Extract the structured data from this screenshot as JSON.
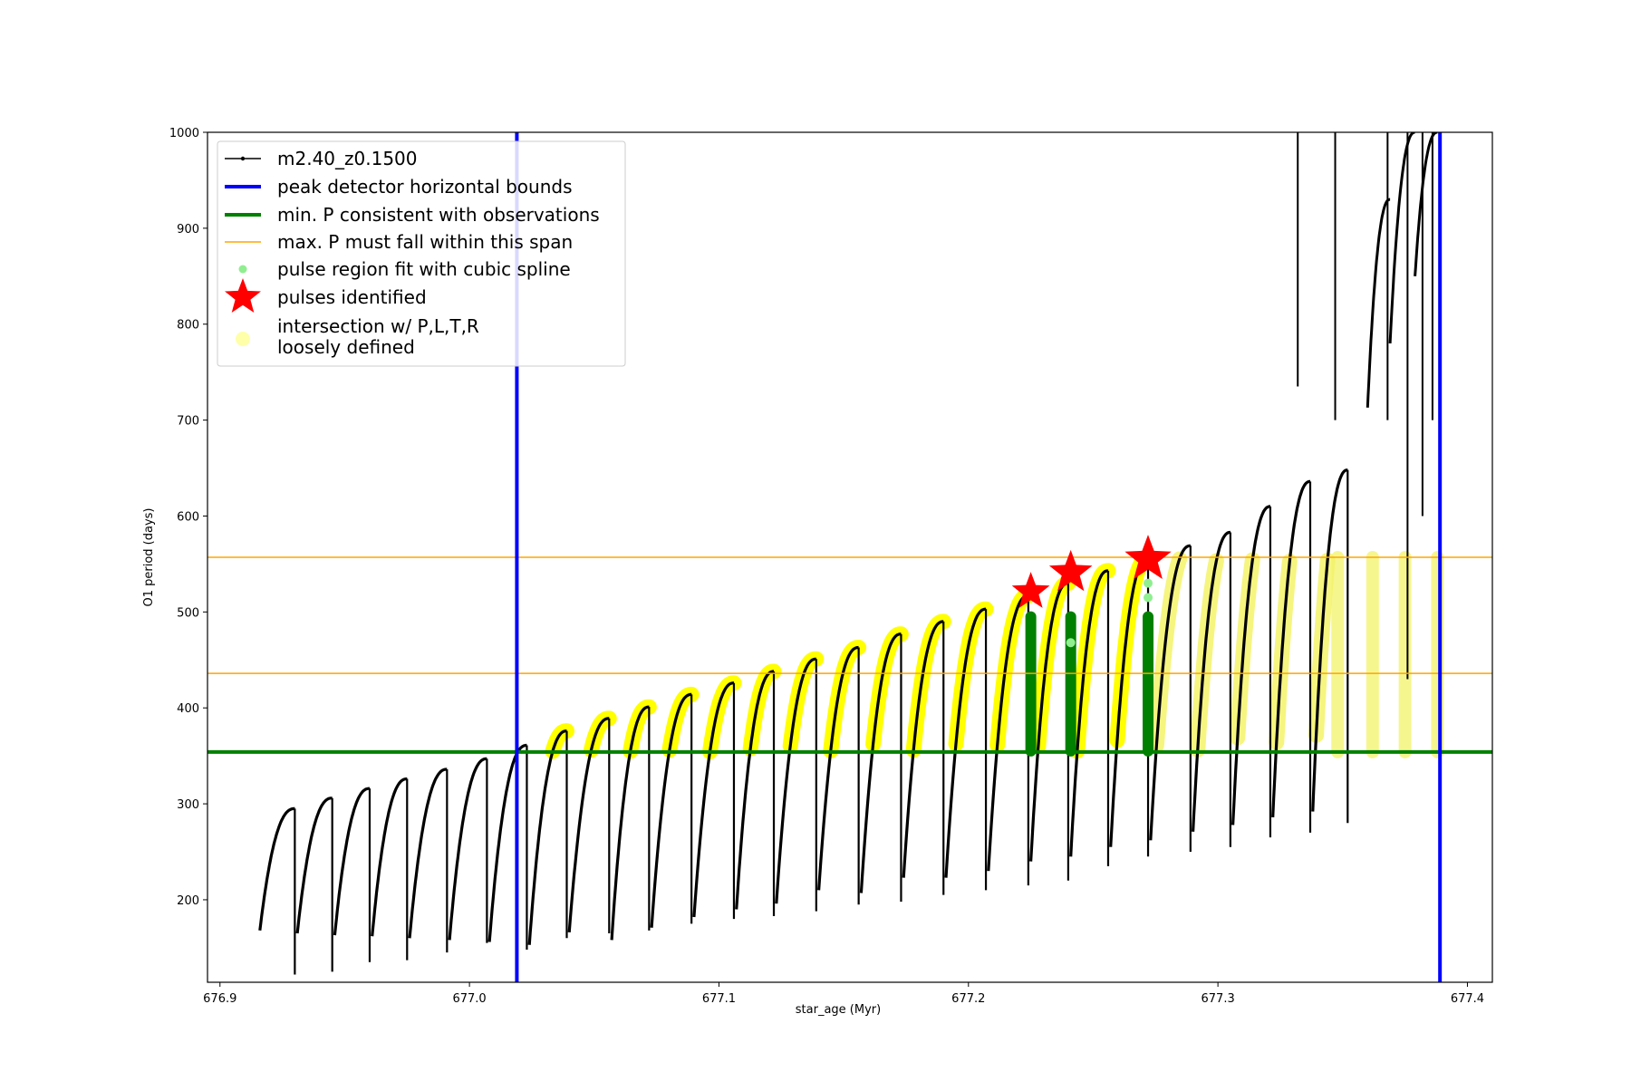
{
  "chart_data": {
    "type": "line",
    "title": "",
    "xlabel": "star_age (Myr)",
    "ylabel": "O1 period (days)",
    "xlim": [
      676.895,
      677.41
    ],
    "ylim": [
      114,
      1000
    ],
    "xticks": [
      676.9,
      677.0,
      677.1,
      677.2,
      677.3,
      677.4
    ],
    "xtick_labels": [
      "676.9",
      "677.0",
      "677.1",
      "677.2",
      "677.3",
      "677.4"
    ],
    "yticks": [
      200,
      300,
      400,
      500,
      600,
      700,
      800,
      900,
      1000
    ],
    "ytick_labels": [
      "200",
      "300",
      "400",
      "500",
      "600",
      "700",
      "800",
      "900",
      "1000"
    ],
    "grid": false,
    "legend_position": "top-left",
    "colors": {
      "track": "#000000",
      "bounds": "#0000ff",
      "min_p": "#008000",
      "max_p_span": "#ffa500",
      "spline": "#90ee90",
      "pulses": "#ff0000",
      "intersection": "#ffff00"
    },
    "legend": [
      {
        "label": "m2.40_z0.1500",
        "kind": "line-marker",
        "color": "#000000"
      },
      {
        "label": "peak detector horizontal bounds",
        "kind": "line",
        "color": "#0000ff"
      },
      {
        "label": "min. P consistent with observations",
        "kind": "line",
        "color": "#008000"
      },
      {
        "label": "max. P must fall within this span",
        "kind": "thin-line",
        "color": "#ffa500"
      },
      {
        "label": "pulse region fit with cubic spline",
        "kind": "dot",
        "color": "#90ee90"
      },
      {
        "label": "pulses identified",
        "kind": "star",
        "color": "#ff0000"
      },
      {
        "label": "intersection w/ P,L,T,R",
        "label2": "loosely defined",
        "kind": "big-dot",
        "color": "#ffffaa"
      }
    ],
    "vertical_bounds": [
      677.019,
      677.389
    ],
    "min_p": 354,
    "max_p_span": [
      436,
      557
    ],
    "pulses": [
      {
        "start": 676.916,
        "end": 676.93,
        "min": 168,
        "max": 295,
        "drop": 122
      },
      {
        "start": 676.931,
        "end": 676.945,
        "min": 165,
        "max": 306,
        "drop": 125
      },
      {
        "start": 676.946,
        "end": 676.96,
        "min": 163,
        "max": 316,
        "drop": 135
      },
      {
        "start": 676.961,
        "end": 676.975,
        "min": 162,
        "max": 326,
        "drop": 137
      },
      {
        "start": 676.976,
        "end": 676.991,
        "min": 160,
        "max": 336,
        "drop": 145
      },
      {
        "start": 676.992,
        "end": 677.007,
        "min": 158,
        "max": 347,
        "drop": 155
      },
      {
        "start": 677.008,
        "end": 677.023,
        "min": 156,
        "max": 361,
        "drop": 148
      },
      {
        "start": 677.024,
        "end": 677.039,
        "min": 153,
        "max": 376,
        "drop": 160
      },
      {
        "start": 677.04,
        "end": 677.056,
        "min": 166,
        "max": 389,
        "drop": 165
      },
      {
        "start": 677.057,
        "end": 677.072,
        "min": 158,
        "max": 401,
        "drop": 168
      },
      {
        "start": 677.073,
        "end": 677.089,
        "min": 171,
        "max": 414,
        "drop": 175
      },
      {
        "start": 677.09,
        "end": 677.106,
        "min": 182,
        "max": 426,
        "drop": 180
      },
      {
        "start": 677.107,
        "end": 677.122,
        "min": 190,
        "max": 438,
        "drop": 183
      },
      {
        "start": 677.123,
        "end": 677.139,
        "min": 196,
        "max": 451,
        "drop": 188
      },
      {
        "start": 677.14,
        "end": 677.156,
        "min": 210,
        "max": 463,
        "drop": 195
      },
      {
        "start": 677.157,
        "end": 677.173,
        "min": 207,
        "max": 477,
        "drop": 198
      },
      {
        "start": 677.174,
        "end": 677.19,
        "min": 223,
        "max": 490,
        "drop": 205
      },
      {
        "start": 677.191,
        "end": 677.207,
        "min": 223,
        "max": 503,
        "drop": 210
      },
      {
        "start": 677.208,
        "end": 677.224,
        "min": 230,
        "max": 517,
        "drop": 215
      },
      {
        "start": 677.225,
        "end": 677.24,
        "min": 240,
        "max": 530,
        "drop": 220
      },
      {
        "start": 677.241,
        "end": 677.256,
        "min": 245,
        "max": 543,
        "drop": 235
      },
      {
        "start": 677.257,
        "end": 677.272,
        "min": 255,
        "max": 556,
        "drop": 245
      },
      {
        "start": 677.273,
        "end": 677.289,
        "min": 262,
        "max": 569,
        "drop": 250
      },
      {
        "start": 677.29,
        "end": 677.305,
        "min": 271,
        "max": 583,
        "drop": 255
      },
      {
        "start": 677.306,
        "end": 677.321,
        "min": 278,
        "max": 610,
        "drop": 265
      },
      {
        "start": 677.322,
        "end": 677.337,
        "min": 286,
        "max": 636,
        "drop": 270
      },
      {
        "start": 677.338,
        "end": 677.352,
        "min": 292,
        "max": 648,
        "drop": 280
      }
    ],
    "late_spikes": [
      {
        "x": 677.332,
        "y0": 735,
        "y1": 1000
      },
      {
        "x": 677.347,
        "y0": 700,
        "y1": 1000
      },
      {
        "x": 677.368,
        "y0": 700,
        "y1": 1000
      },
      {
        "x": 677.376,
        "y0": 430,
        "y1": 1000
      },
      {
        "x": 677.382,
        "y0": 600,
        "y1": 1000
      },
      {
        "x": 677.386,
        "y0": 700,
        "y1": 1000
      }
    ],
    "late_curves": [
      {
        "start": 677.36,
        "end": 677.369,
        "min": 713,
        "max": 930
      },
      {
        "start": 677.369,
        "end": 677.379,
        "min": 780,
        "max": 1000
      },
      {
        "start": 677.379,
        "end": 677.388,
        "min": 850,
        "max": 1000
      }
    ],
    "stars": [
      {
        "x": 677.225,
        "y": 521,
        "size": "small"
      },
      {
        "x": 677.241,
        "y": 541,
        "size": "medium"
      },
      {
        "x": 677.272,
        "y": 555,
        "size": "large"
      }
    ],
    "green_columns": [
      {
        "x": 677.225,
        "y0": 355,
        "y1": 495
      },
      {
        "x": 677.241,
        "y0": 355,
        "y1": 495
      },
      {
        "x": 677.272,
        "y0": 355,
        "y1": 495
      }
    ],
    "spline_points": [
      {
        "x": 677.272,
        "y": 530
      },
      {
        "x": 677.272,
        "y": 515
      },
      {
        "x": 677.241,
        "y": 468
      }
    ]
  }
}
